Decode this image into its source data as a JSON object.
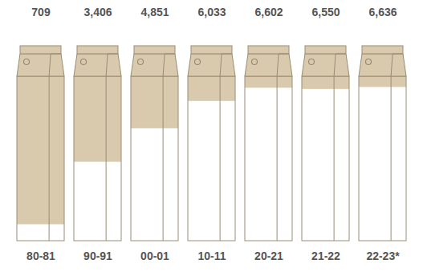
{
  "chart_data": {
    "type": "bar",
    "categories": [
      "80-81",
      "90-91",
      "00-01",
      "10-11",
      "20-21",
      "21-22",
      "22-23*"
    ],
    "values": [
      709,
      3406,
      4851,
      6033,
      6602,
      6550,
      6636
    ],
    "value_labels": [
      "709",
      "3,406",
      "4,851",
      "6,033",
      "6,602",
      "6,550",
      "6,636"
    ],
    "color": "#ffffff",
    "ylim": [
      0,
      7100
    ],
    "yticks": [],
    "tick_labels": "x",
    "data_labels": true
  }
}
